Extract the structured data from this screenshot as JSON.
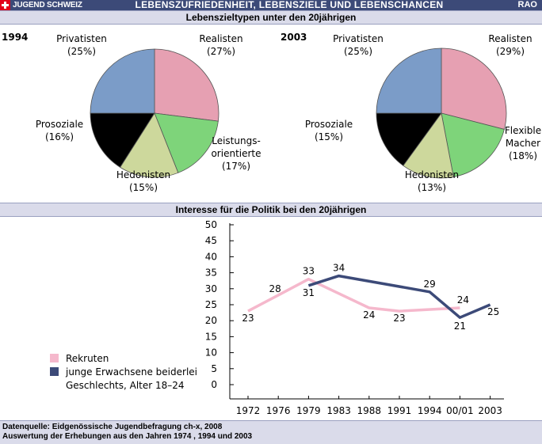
{
  "header": {
    "brand": "JUGEND SCHWEIZ",
    "title": "LEBENSZUFRIEDENHEIT, LEBENSZIELE UND LEBENSCHANCEN",
    "publisher": "RAO"
  },
  "sections": {
    "pies_title": "Lebenszieltypen unter den 20jährigen",
    "line_title": "Interesse für die Politik bei den 20jährigen"
  },
  "footer": {
    "line1": "Datenquelle: Eidgenössische Jugendbefragung ch-x, 2008",
    "line2": "Auswertung der Erhebungen aus den Jahren 1974 , 1994 und 2003"
  },
  "chart_data": [
    {
      "type": "pie",
      "title": "1994",
      "slices": [
        {
          "label": "Realisten",
          "pct_text": "(27%)",
          "value": 27,
          "color": "#e6a0b2"
        },
        {
          "label": "Leistungs-\norientierte",
          "pct_text": "(17%)",
          "value": 17,
          "color": "#7ed47a"
        },
        {
          "label": "Hedonisten",
          "pct_text": "(15%)",
          "value": 15,
          "color": "#cdd89c"
        },
        {
          "label": "Prosoziale",
          "pct_text": "(16%)",
          "value": 16,
          "color": "#000000"
        },
        {
          "label": "Privatisten",
          "pct_text": "(25%)",
          "value": 25,
          "color": "#7b9cc8"
        }
      ]
    },
    {
      "type": "pie",
      "title": "2003",
      "slices": [
        {
          "label": "Realisten",
          "pct_text": "(29%)",
          "value": 29,
          "color": "#e6a0b2"
        },
        {
          "label": "Flexible\nMacher",
          "pct_text": "(18%)",
          "value": 18,
          "color": "#7ed47a"
        },
        {
          "label": "Hedonisten",
          "pct_text": "(13%)",
          "value": 13,
          "color": "#cdd89c"
        },
        {
          "label": "Prosoziale",
          "pct_text": "(15%)",
          "value": 15,
          "color": "#000000"
        },
        {
          "label": "Privatisten",
          "pct_text": "(25%)",
          "value": 25,
          "color": "#7b9cc8"
        }
      ]
    },
    {
      "type": "line",
      "categories": [
        "1972",
        "1976",
        "1979",
        "1983",
        "1988",
        "1991",
        "1994",
        "00/01",
        "2003"
      ],
      "y_ticks": [
        "0",
        "5",
        "10",
        "15",
        "20",
        "25",
        "30",
        "35",
        "40",
        "45",
        "50"
      ],
      "ylim": [
        0,
        50
      ],
      "series": [
        {
          "name": "Rekruten",
          "color": "#f5b8cc",
          "points": [
            [
              0,
              23
            ],
            [
              1,
              28
            ],
            [
              2,
              33
            ],
            [
              4,
              24
            ],
            [
              5,
              23
            ],
            [
              7,
              24
            ]
          ]
        },
        {
          "name": "junge Erwachsene beiderlei Geschlechts, Alter 18–24",
          "color": "#3c4a78",
          "points": [
            [
              2,
              31
            ],
            [
              3,
              34
            ],
            [
              6,
              29
            ],
            [
              7,
              21
            ],
            [
              8,
              25
            ]
          ]
        }
      ],
      "data_labels": [
        {
          "cat": 0,
          "value": 23,
          "text": "23"
        },
        {
          "cat": 1,
          "value": 28,
          "text": "28"
        },
        {
          "cat": 2,
          "value": 33,
          "text": "33"
        },
        {
          "cat": 2,
          "value": 31,
          "text": "31"
        },
        {
          "cat": 3,
          "value": 34,
          "text": "34"
        },
        {
          "cat": 4,
          "value": 24,
          "text": "24"
        },
        {
          "cat": 5,
          "value": 23,
          "text": "23"
        },
        {
          "cat": 6,
          "value": 29,
          "text": "29"
        },
        {
          "cat": 7,
          "value": 24,
          "text": "24"
        },
        {
          "cat": 7,
          "value": 21,
          "text": "21"
        },
        {
          "cat": 8,
          "value": 25,
          "text": "25"
        }
      ],
      "legend": [
        {
          "text": "Rekruten",
          "color": "#f5b8cc"
        },
        {
          "text": "junge Erwachsene beiderlei\nGeschlechts, Alter 18–24",
          "color": "#3c4a78"
        }
      ]
    }
  ]
}
